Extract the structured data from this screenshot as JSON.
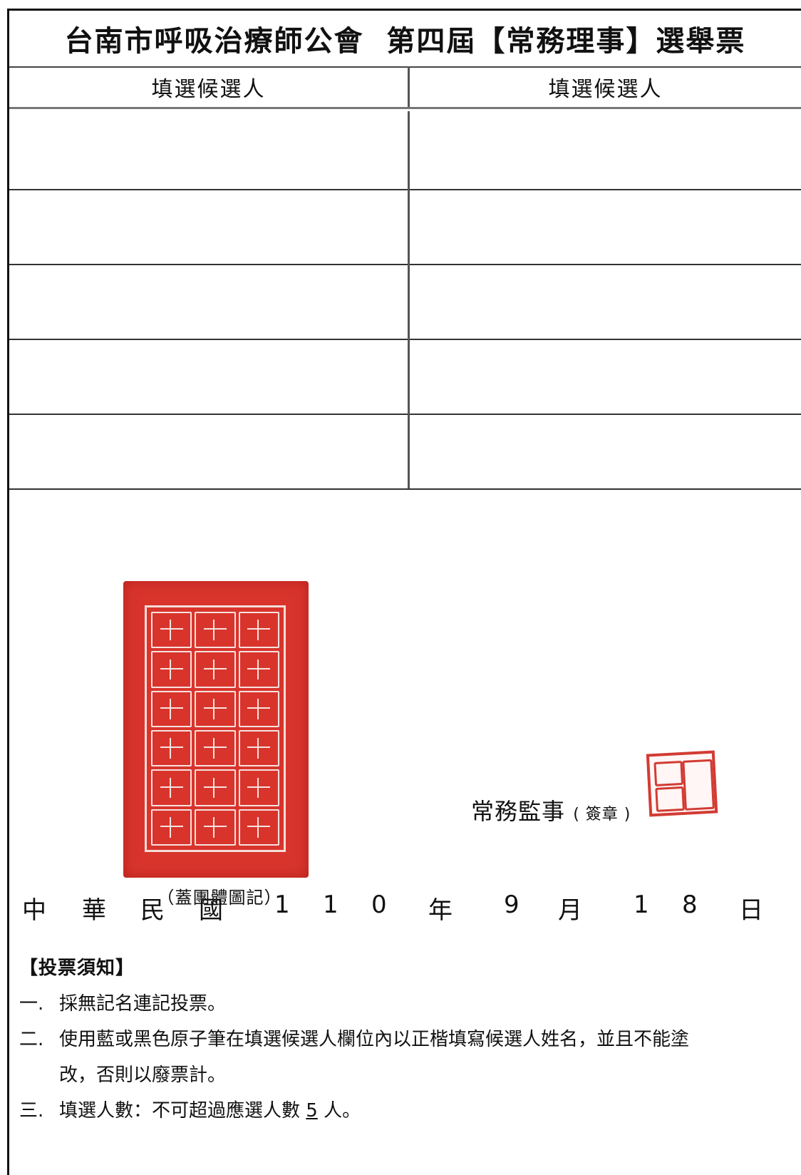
{
  "ballot": {
    "title": "台南市呼吸治療師公會  第四屆【常務理事】選舉票",
    "columns": [
      "填選候選人",
      "填選候選人"
    ],
    "rows": 5
  },
  "stamps": {
    "org_seal_caption": "（蓋團體圖記）",
    "org_seal_color": "#d8342c",
    "supervisor_label": "常務監事",
    "supervisor_sign_note": "( 簽章 )",
    "supervisor_seal_color": "#d23b33"
  },
  "date": {
    "parts": [
      "中",
      "華",
      "民",
      "國",
      "1",
      "1",
      "0",
      "年",
      "9",
      "月",
      "1",
      "8",
      "日"
    ]
  },
  "notice": {
    "title": "【投票須知】",
    "items": [
      {
        "num": "一.",
        "text": "採無記名連記投票。"
      },
      {
        "num": "二.",
        "text": "使用藍或黑色原子筆在填選候選人欄位內以正楷填寫候選人姓名，並且不能塗"
      },
      {
        "num": "",
        "text": "改，否則以廢票計。"
      },
      {
        "num": "三.",
        "text_before": "填選人數：不可超過應選人數",
        "count": "5",
        "text_after": "人。"
      }
    ]
  }
}
